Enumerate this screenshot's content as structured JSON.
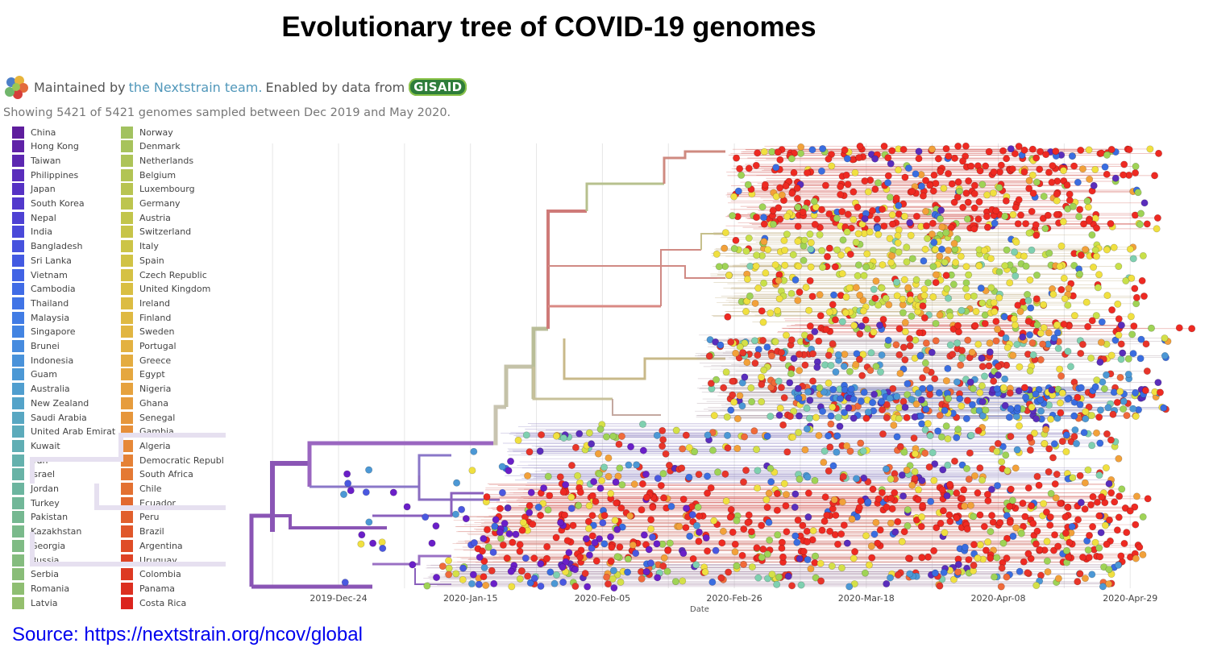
{
  "title": "Evolutionary tree of COVID-19 genomes",
  "header": {
    "maintained_prefix": "Maintained by",
    "team_link": "the Nextstrain team.",
    "enabled_text": "Enabled by data from",
    "gisaid": "GISAID"
  },
  "summary": "Showing 5421 of 5421 genomes sampled between Dec 2019 and May 2020.",
  "legend": {
    "column1": [
      {
        "label": "China",
        "color": "#5e1d9d"
      },
      {
        "label": "Hong Kong",
        "color": "#5f22a7"
      },
      {
        "label": "Taiwan",
        "color": "#5c27b1"
      },
      {
        "label": "Philippines",
        "color": "#5a2dbc"
      },
      {
        "label": "Japan",
        "color": "#5632c4"
      },
      {
        "label": "South Korea",
        "color": "#5239cc"
      },
      {
        "label": "Nepal",
        "color": "#4e41d3"
      },
      {
        "label": "India",
        "color": "#4a49d9"
      },
      {
        "label": "Bangladesh",
        "color": "#4652de"
      },
      {
        "label": "Sri Lanka",
        "color": "#435ae2"
      },
      {
        "label": "Vietnam",
        "color": "#4163e5"
      },
      {
        "label": "Cambodia",
        "color": "#406ce6"
      },
      {
        "label": "Thailand",
        "color": "#4074e6"
      },
      {
        "label": "Malaysia",
        "color": "#417ce5"
      },
      {
        "label": "Singapore",
        "color": "#4384e2"
      },
      {
        "label": "Brunei",
        "color": "#468bdf"
      },
      {
        "label": "Indonesia",
        "color": "#4992da"
      },
      {
        "label": "Guam",
        "color": "#4c98d5"
      },
      {
        "label": "Australia",
        "color": "#509ecf"
      },
      {
        "label": "New Zealand",
        "color": "#54a3c9"
      },
      {
        "label": "Saudi Arabia",
        "color": "#58a7c2"
      },
      {
        "label": "United Arab Emirat",
        "color": "#5cabbb"
      },
      {
        "label": "Kuwait",
        "color": "#60aeb4"
      },
      {
        "label": "Iran",
        "color": "#64b1ad"
      },
      {
        "label": "Israel",
        "color": "#68b3a6"
      },
      {
        "label": "Jordan",
        "color": "#6cb59f"
      },
      {
        "label": "Turkey",
        "color": "#71b798"
      },
      {
        "label": "Pakistan",
        "color": "#75b891"
      },
      {
        "label": "Kazakhstan",
        "color": "#7aba8b"
      },
      {
        "label": "Georgia",
        "color": "#7fbb84"
      },
      {
        "label": "Russia",
        "color": "#84bc7e"
      },
      {
        "label": "Serbia",
        "color": "#89bd78"
      },
      {
        "label": "Romania",
        "color": "#8ebe72"
      },
      {
        "label": "Latvia",
        "color": "#94bf6d"
      }
    ],
    "column2": [
      {
        "label": "Norway",
        "color": "#a2c260"
      },
      {
        "label": "Denmark",
        "color": "#a7c35c"
      },
      {
        "label": "Netherlands",
        "color": "#adc458"
      },
      {
        "label": "Belgium",
        "color": "#b2c454"
      },
      {
        "label": "Luxembourg",
        "color": "#b8c451"
      },
      {
        "label": "Germany",
        "color": "#bdc54e"
      },
      {
        "label": "Austria",
        "color": "#c2c54b"
      },
      {
        "label": "Switzerland",
        "color": "#c7c449"
      },
      {
        "label": "Italy",
        "color": "#ccc447"
      },
      {
        "label": "Spain",
        "color": "#d1c345"
      },
      {
        "label": "Czech Republic",
        "color": "#d5c144"
      },
      {
        "label": "United Kingdom",
        "color": "#d9bf43"
      },
      {
        "label": "Ireland",
        "color": "#dcbc42"
      },
      {
        "label": "Finland",
        "color": "#dfb942"
      },
      {
        "label": "Sweden",
        "color": "#e1b541"
      },
      {
        "label": "Portugal",
        "color": "#e3b141"
      },
      {
        "label": "Greece",
        "color": "#e4ac40"
      },
      {
        "label": "Egypt",
        "color": "#e5a73f"
      },
      {
        "label": "Nigeria",
        "color": "#e6a23e"
      },
      {
        "label": "Ghana",
        "color": "#e69c3d"
      },
      {
        "label": "Senegal",
        "color": "#e6963b"
      },
      {
        "label": "Gambia",
        "color": "#e68f3a"
      },
      {
        "label": "Algeria",
        "color": "#e68838"
      },
      {
        "label": "Democratic Republi",
        "color": "#e58136"
      },
      {
        "label": "South Africa",
        "color": "#e47934"
      },
      {
        "label": "Chile",
        "color": "#e37132"
      },
      {
        "label": "Ecuador",
        "color": "#e2692f"
      },
      {
        "label": "Peru",
        "color": "#e1602d"
      },
      {
        "label": "Brazil",
        "color": "#e0572a"
      },
      {
        "label": "Argentina",
        "color": "#df4d27"
      },
      {
        "label": "Uruguay",
        "color": "#de4325"
      },
      {
        "label": "Colombia",
        "color": "#dd3922"
      },
      {
        "label": "Panama",
        "color": "#dc2f20"
      },
      {
        "label": "Costa Rica",
        "color": "#db241e"
      }
    ]
  },
  "tree": {
    "axis_title": "Date",
    "x_ticks": [
      "2019-Dec-24",
      "2020-Jan-15",
      "2020-Feb-05",
      "2020-Feb-26",
      "2020-Mar-18",
      "2020-Apr-08",
      "2020-Apr-29"
    ],
    "tip_palette": [
      "#e8352a",
      "#e8352a",
      "#e8352a",
      "#f0e040",
      "#d4e048",
      "#9fd356",
      "#f2a13a",
      "#3a6de0",
      "#5a2dbc",
      "#4c98d5",
      "#7fd0b0",
      "#f06a3a"
    ]
  },
  "source": "Source: https://nextstrain.org/ncov/global"
}
